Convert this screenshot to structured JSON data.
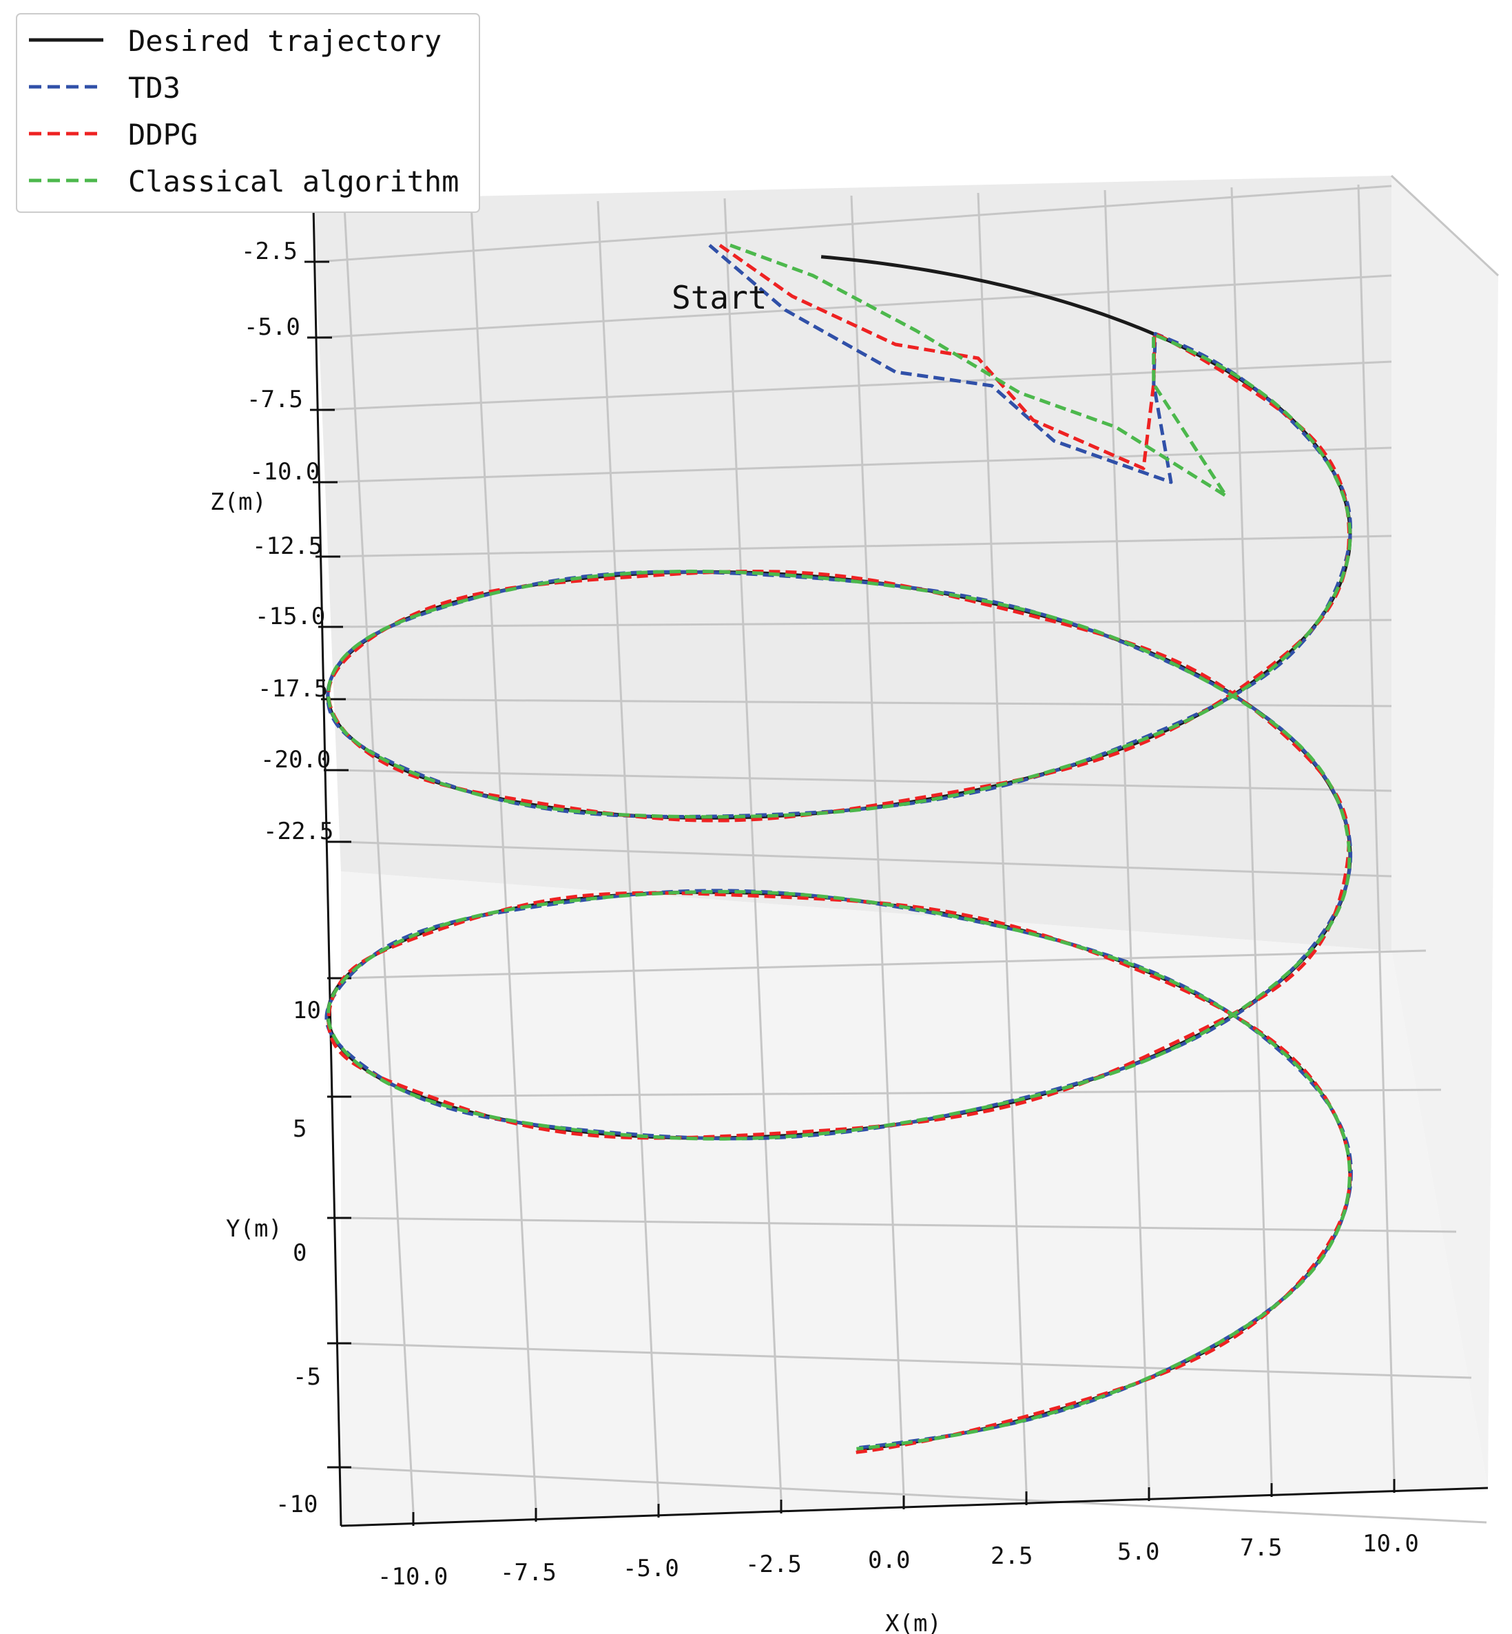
{
  "chart_data": {
    "type": "line",
    "projection": "3d",
    "title": "",
    "xlabel": "X(m)",
    "ylabel": "Y(m)",
    "zlabel": "Z(m)",
    "x_ticks": [
      "-10.0",
      "-7.5",
      "-5.0",
      "-2.5",
      "0.0",
      "2.5",
      "5.0",
      "7.5",
      "10.0"
    ],
    "y_ticks": [
      "10",
      "5",
      "0",
      "-5",
      "-10"
    ],
    "z_ticks": [
      "-2.5",
      "-5.0",
      "-7.5",
      "-10.0",
      "-12.5",
      "-15.0",
      "-17.5",
      "-20.0",
      "-22.5"
    ],
    "xlim": [
      -11.5,
      11.5
    ],
    "ylim": [
      -10,
      10
    ],
    "zlim": [
      -24,
      -1
    ],
    "grid": true,
    "legend_position": "top-left",
    "annotation": "Start",
    "desired_trajectory": {
      "shape": "helix",
      "radius": 10,
      "turns": 2.5,
      "z_start": -10,
      "z_end": -24
    },
    "series": [
      {
        "name": "Desired trajectory",
        "color": "#1a1a1a",
        "style": "solid"
      },
      {
        "name": "TD3",
        "color": "#3050a8",
        "style": "dashed"
      },
      {
        "name": "DDPG",
        "color": "#ee2222",
        "style": "dashed"
      },
      {
        "name": "Classical algorithm",
        "color": "#4cb84c",
        "style": "dashed"
      }
    ]
  }
}
